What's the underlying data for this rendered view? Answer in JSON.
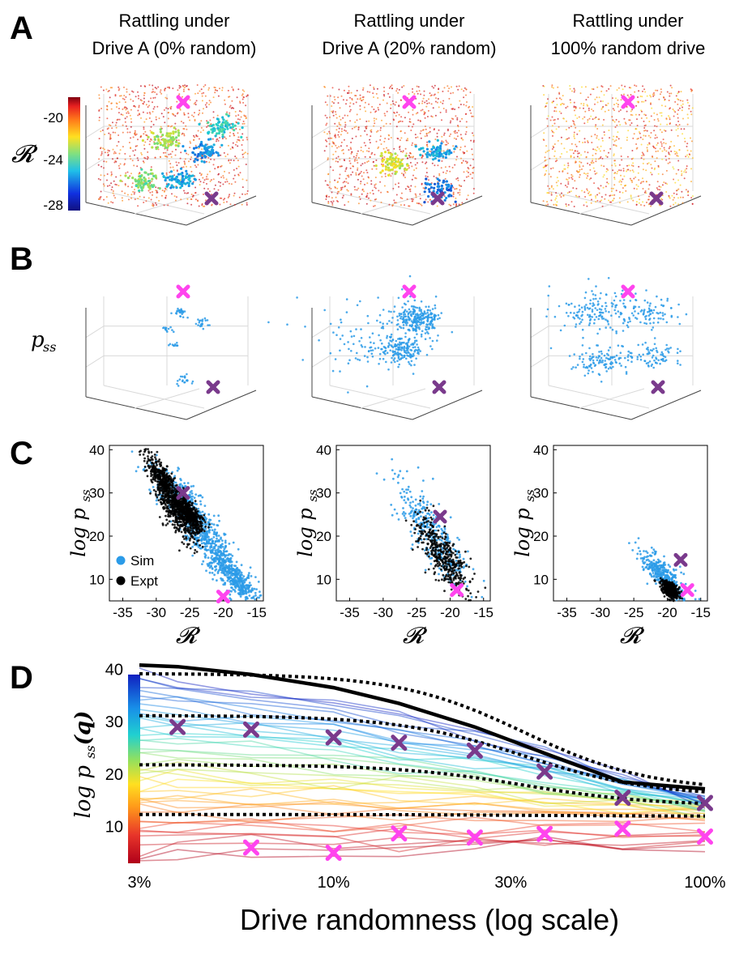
{
  "colors": {
    "sim": "#2b9be8",
    "expt": "#000000",
    "marker_high": "#ff44ee",
    "marker_low": "#7a3a8c"
  },
  "panels": {
    "A": "A",
    "B": "B",
    "C": "C",
    "D": "D"
  },
  "columns": [
    {
      "title_line1": "Rattling under",
      "title_line2": "Drive A (0% random)"
    },
    {
      "title_line1": "Rattling under",
      "title_line2": "Drive A (20% random)"
    },
    {
      "title_line1": "Rattling under",
      "title_line2": "100% random drive"
    }
  ],
  "panel_a": {
    "colorbar_label": "𝓡",
    "colorbar_ticks": [
      "-20",
      "-24",
      "-28"
    ],
    "colorbar_range": [
      -29,
      -18
    ]
  },
  "panel_b": {
    "ylabel": "p",
    "ylabel_sub": "ss"
  },
  "panel_c": {
    "ylabel": "log p",
    "ylabel_sub": "ss",
    "xlabel": "𝓡",
    "legend": [
      "Sim",
      "Expt"
    ]
  },
  "panel_d": {
    "ylabel": "log p",
    "ylabel_sub": "ss",
    "ylabel_arg": "(q)"
  },
  "chart_data": [
    {
      "type": "scatter",
      "panel": "C1",
      "title": "Drive A (0% random)",
      "xlabel": "𝓡",
      "ylabel": "log p_ss",
      "xlim": [
        -37,
        -14
      ],
      "ylim": [
        5,
        41
      ],
      "xticks": [
        "-35",
        "-30",
        "-25",
        "-20",
        "-15"
      ],
      "yticks": [
        "10",
        "20",
        "30",
        "40"
      ],
      "series": [
        {
          "name": "Sim",
          "clusters": [
            {
              "cx": -26,
              "cy": 28,
              "sx": 2.5,
              "sy": 4.5
            },
            {
              "cx": -22,
              "cy": 18,
              "sx": 2.0,
              "sy": 4.5
            },
            {
              "cx": -18,
              "cy": 10,
              "sx": 1.5,
              "sy": 3
            }
          ]
        },
        {
          "name": "Expt",
          "clusters": [
            {
              "cx": -29,
              "cy": 33,
              "sx": 1.2,
              "sy": 3
            },
            {
              "cx": -27,
              "cy": 26,
              "sx": 1.5,
              "sy": 4
            },
            {
              "cx": -25,
              "cy": 25,
              "sx": 1.0,
              "sy": 2.5
            }
          ]
        }
      ],
      "markers": [
        {
          "kind": "high",
          "x": -20,
          "y": 6
        },
        {
          "kind": "low",
          "x": -26,
          "y": 30
        }
      ]
    },
    {
      "type": "scatter",
      "panel": "C2",
      "title": "Drive A (20% random)",
      "xlabel": "𝓡",
      "ylabel": "log p_ss",
      "xlim": [
        -37,
        -14
      ],
      "ylim": [
        5,
        41
      ],
      "xticks": [
        "-35",
        "-30",
        "-25",
        "-20",
        "-15"
      ],
      "yticks": [
        "10",
        "20",
        "30",
        "40"
      ],
      "series": [
        {
          "name": "Sim",
          "clusters": [
            {
              "cx": -22.5,
              "cy": 20,
              "sx": 2.8,
              "sy": 6.5
            }
          ]
        },
        {
          "name": "Expt",
          "clusters": [
            {
              "cx": -21,
              "cy": 15,
              "sx": 2.0,
              "sy": 5
            }
          ]
        }
      ],
      "markers": [
        {
          "kind": "high",
          "x": -19,
          "y": 7.5
        },
        {
          "kind": "low",
          "x": -21.5,
          "y": 24.5
        }
      ]
    },
    {
      "type": "scatter",
      "panel": "C3",
      "title": "100% random drive",
      "xlabel": "𝓡",
      "ylabel": "log p_ss",
      "xlim": [
        -37,
        -14
      ],
      "ylim": [
        5,
        41
      ],
      "xticks": [
        "-35",
        "-30",
        "-25",
        "-20",
        "-15"
      ],
      "yticks": [
        "10",
        "20",
        "30",
        "40"
      ],
      "series": [
        {
          "name": "Sim",
          "clusters": [
            {
              "cx": -20.5,
              "cy": 11,
              "sx": 1.6,
              "sy": 2.8
            }
          ]
        },
        {
          "name": "Expt",
          "clusters": [
            {
              "cx": -19.5,
              "cy": 7.5,
              "sx": 0.6,
              "sy": 1.2
            }
          ]
        }
      ],
      "markers": [
        {
          "kind": "high",
          "x": -17,
          "y": 7.5
        },
        {
          "kind": "low",
          "x": -18,
          "y": 14.5
        }
      ]
    },
    {
      "type": "line",
      "panel": "D",
      "title": "",
      "xlabel": "Drive randomness (log scale)",
      "ylabel": "log p_ss(q)",
      "xscale": "log",
      "xlim": [
        0.03,
        1.0
      ],
      "ylim": [
        3,
        41
      ],
      "xticks": [
        {
          "v": 0.03,
          "label": "3%"
        },
        {
          "v": 0.1,
          "label": "10%"
        },
        {
          "v": 0.3,
          "label": "30%"
        },
        {
          "v": 1.0,
          "label": "100%"
        }
      ],
      "yticks": [
        {
          "v": 10,
          "label": "10"
        },
        {
          "v": 20,
          "label": "20"
        },
        {
          "v": 30,
          "label": "30"
        },
        {
          "v": 40,
          "label": "40"
        }
      ],
      "x": [
        0.03,
        0.038,
        0.06,
        0.1,
        0.15,
        0.24,
        0.37,
        0.6,
        1.0
      ],
      "envelope": [
        40.8,
        40.5,
        39,
        36.5,
        33.5,
        29,
        24,
        18.5,
        17.2
      ],
      "dotted_lines": [
        {
          "start": 39.2,
          "end": 16.8
        },
        {
          "start": 31.2,
          "end": 15.8
        },
        {
          "start": 21.8,
          "end": 14.0
        },
        {
          "start": 12.3,
          "end": 12.0
        }
      ],
      "markers_low": [
        {
          "x": 0.038,
          "y": 29
        },
        {
          "x": 0.06,
          "y": 28.5
        },
        {
          "x": 0.1,
          "y": 27
        },
        {
          "x": 0.15,
          "y": 26
        },
        {
          "x": 0.24,
          "y": 24.5
        },
        {
          "x": 0.37,
          "y": 20.5
        },
        {
          "x": 0.6,
          "y": 15.5
        },
        {
          "x": 1.0,
          "y": 14.5
        }
      ],
      "markers_high": [
        {
          "x": 0.06,
          "y": 6
        },
        {
          "x": 0.1,
          "y": 5
        },
        {
          "x": 0.15,
          "y": 8.7
        },
        {
          "x": 0.24,
          "y": 7.9
        },
        {
          "x": 0.37,
          "y": 8.6
        },
        {
          "x": 0.6,
          "y": 9.6
        },
        {
          "x": 1.0,
          "y": 8.1
        }
      ],
      "background_lines": {
        "count": 44,
        "ymin": 4,
        "ymax": 39,
        "color_scale": "jet"
      }
    }
  ]
}
